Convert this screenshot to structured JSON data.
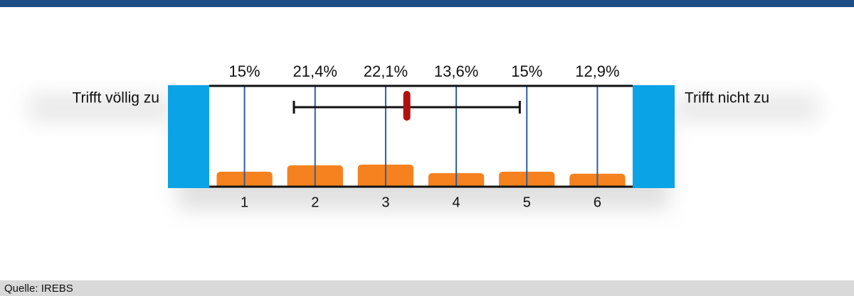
{
  "chart_data": {
    "type": "bar",
    "left_label": "Trifft völlig zu",
    "right_label": "Trifft nicht zu",
    "categories": [
      "1",
      "2",
      "3",
      "4",
      "5",
      "6"
    ],
    "values": [
      15,
      21.4,
      22.1,
      13.6,
      15,
      12.9
    ],
    "value_labels": [
      "15%",
      "21,4%",
      "22,1%",
      "13,6%",
      "15%",
      "12,9%"
    ],
    "color": "#f5821f",
    "ylim": [
      0,
      100
    ],
    "xlim": [
      0.5,
      6.5
    ],
    "mean": 3.3,
    "sd": 1.6,
    "mean_color": "#b0100f",
    "source": "Quelle: IREBS"
  }
}
